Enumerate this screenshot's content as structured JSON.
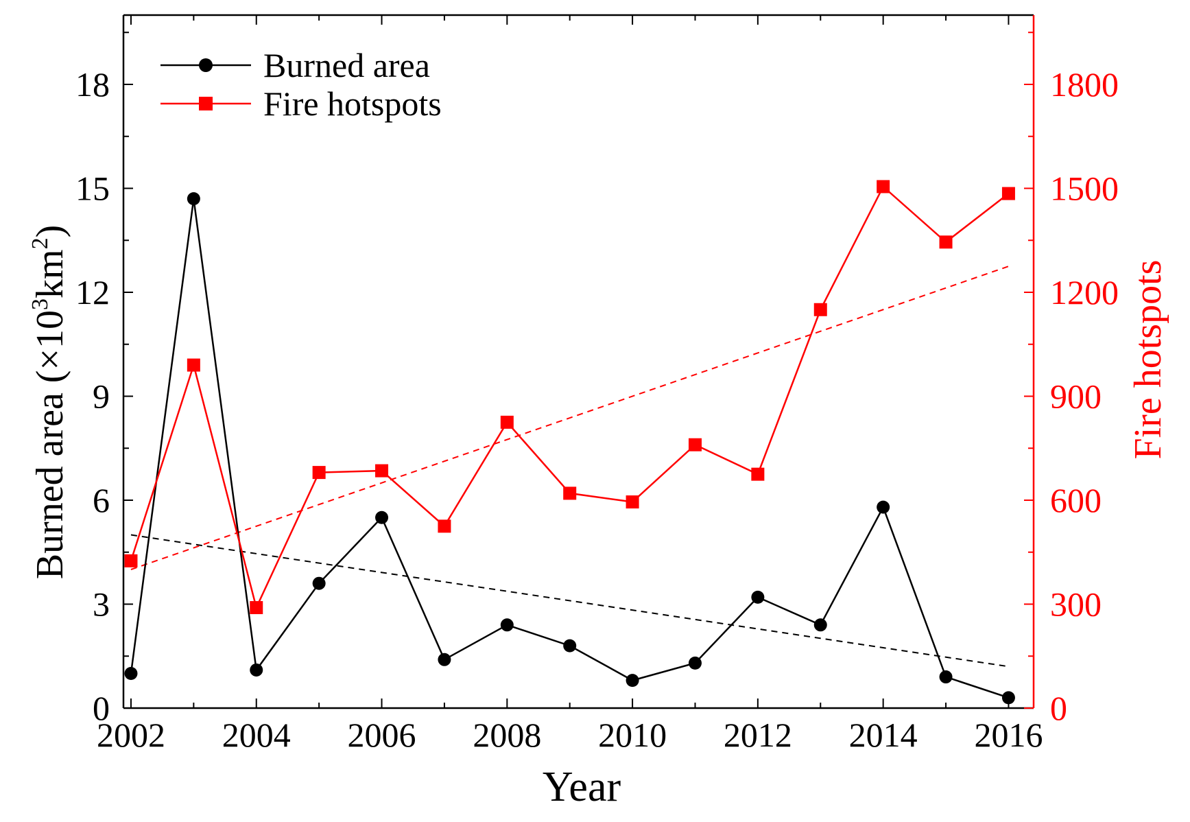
{
  "colors": {
    "burned": "#000000",
    "hotspots": "#ff0000",
    "axis_right": "#ff0000",
    "axis_left": "#000000"
  },
  "chart_data": {
    "type": "line",
    "title": "",
    "xlabel": "Year",
    "ylabel_left_main": "Burned area (×10",
    "ylabel_left_exp1": "3",
    "ylabel_left_mid": "km",
    "ylabel_left_exp2": "2",
    "ylabel_left_close": ")",
    "ylabel_right": "Fire hotspots",
    "xlim": [
      2001.88,
      2016.4
    ],
    "ylim_left": [
      0,
      20
    ],
    "ylim_right": [
      0,
      2000
    ],
    "x_ticks": [
      2002,
      2004,
      2006,
      2008,
      2010,
      2012,
      2014,
      2016
    ],
    "x_tick_labels": [
      "2002",
      "2004",
      "2006",
      "2008",
      "2010",
      "2012",
      "2014",
      "2016"
    ],
    "y_left_ticks": [
      0,
      3,
      6,
      9,
      12,
      15,
      18
    ],
    "y_left_tick_labels": [
      "0",
      "3",
      "6",
      "9",
      "12",
      "15",
      "18"
    ],
    "y_right_ticks": [
      0,
      300,
      600,
      900,
      1200,
      1500,
      1800
    ],
    "y_right_tick_labels": [
      "0",
      "300",
      "600",
      "900",
      "1200",
      "1500",
      "1800"
    ],
    "x": [
      2002,
      2003,
      2004,
      2005,
      2006,
      2007,
      2008,
      2009,
      2010,
      2011,
      2012,
      2013,
      2014,
      2015,
      2016
    ],
    "series": [
      {
        "name": "Burned area",
        "axis": "left",
        "marker": "circle",
        "values": [
          1.0,
          14.7,
          1.1,
          3.6,
          5.5,
          1.4,
          2.4,
          1.8,
          0.8,
          1.3,
          3.2,
          2.4,
          5.8,
          0.9,
          0.3
        ],
        "trend": [
          5.0,
          1.2
        ]
      },
      {
        "name": "Fire hotspots",
        "axis": "right",
        "marker": "square",
        "values": [
          425,
          990,
          290,
          680,
          685,
          525,
          825,
          620,
          595,
          760,
          675,
          1150,
          1505,
          1345,
          1485
        ],
        "trend": [
          400,
          1275
        ]
      }
    ],
    "legend": {
      "position": "top-left",
      "entries": [
        "Burned area",
        "Fire hotspots"
      ]
    }
  }
}
